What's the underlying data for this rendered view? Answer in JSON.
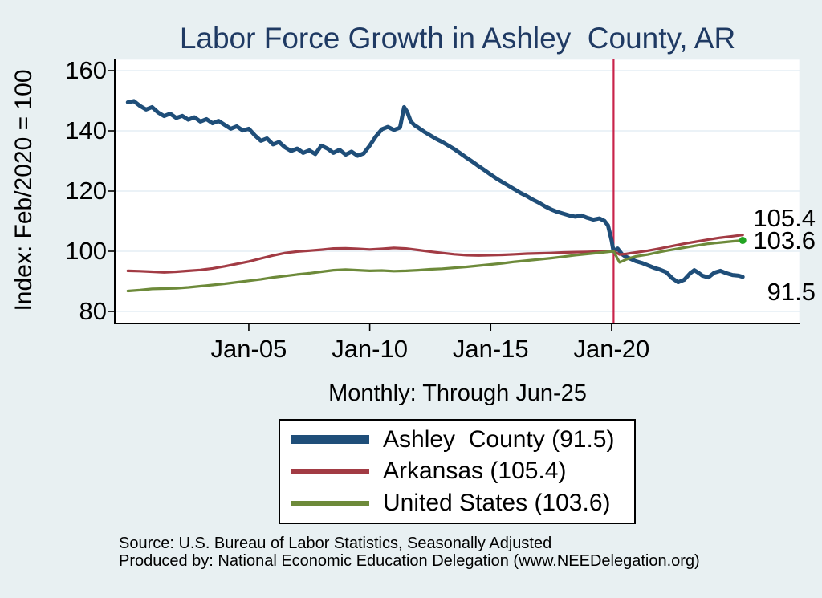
{
  "title": {
    "text": "Labor Force Growth in Ashley  County, AR"
  },
  "colors": {
    "background": "#e8f0f2",
    "plot_bg": "#ffffff",
    "grid": "#dfe9f2",
    "axis": "#000000",
    "title": "#1f3a63",
    "navy": "#1f4e79",
    "maroon": "#a23b44",
    "olive": "#6d8a3a",
    "vline": "#c9244b",
    "end_marker": "#22a422"
  },
  "chart_data": {
    "type": "line",
    "title": "Labor Force Growth in Ashley  County, AR",
    "xlabel": "Monthly: Through Jun-25",
    "ylabel": "Index: Feb/2020 = 100",
    "grid": true,
    "legend_position": "bottom",
    "ylim": [
      76,
      164
    ],
    "xlim": [
      1999.5,
      2027.8
    ],
    "y_ticks": [
      {
        "value": 160,
        "label": "160"
      },
      {
        "value": 140,
        "label": "140"
      },
      {
        "value": 120,
        "label": "120"
      },
      {
        "value": 100,
        "label": "100"
      },
      {
        "value": 80,
        "label": "80"
      }
    ],
    "x_ticks": [
      {
        "year": 2005,
        "label": "Jan-05"
      },
      {
        "year": 2010,
        "label": "Jan-10"
      },
      {
        "year": 2015,
        "label": "Jan-15"
      },
      {
        "year": 2020,
        "label": "Jan-20"
      }
    ],
    "reference_line": {
      "x_year": 2020.083,
      "color": "#c9244b"
    },
    "series": [
      {
        "name": "Ashley  County",
        "final_value": "91.5",
        "color": "#1f4e79",
        "width": 5,
        "points": [
          [
            2000,
            149.5
          ],
          [
            2000.25,
            149.9
          ],
          [
            2000.5,
            148.3
          ],
          [
            2000.75,
            147.1
          ],
          [
            2001,
            147.9
          ],
          [
            2001.25,
            146.1
          ],
          [
            2001.5,
            144.9
          ],
          [
            2001.75,
            145.7
          ],
          [
            2002,
            144.3
          ],
          [
            2002.25,
            145.0
          ],
          [
            2002.5,
            143.7
          ],
          [
            2002.75,
            144.5
          ],
          [
            2003,
            143.1
          ],
          [
            2003.25,
            143.9
          ],
          [
            2003.5,
            142.5
          ],
          [
            2003.75,
            143.3
          ],
          [
            2004,
            142.0
          ],
          [
            2004.25,
            140.7
          ],
          [
            2004.5,
            141.5
          ],
          [
            2004.75,
            140.1
          ],
          [
            2005,
            140.7
          ],
          [
            2005.25,
            138.5
          ],
          [
            2005.5,
            136.7
          ],
          [
            2005.75,
            137.5
          ],
          [
            2006,
            135.5
          ],
          [
            2006.25,
            136.3
          ],
          [
            2006.5,
            134.5
          ],
          [
            2006.75,
            133.3
          ],
          [
            2007,
            134.1
          ],
          [
            2007.25,
            132.7
          ],
          [
            2007.5,
            133.5
          ],
          [
            2007.75,
            132.3
          ],
          [
            2008,
            135.1
          ],
          [
            2008.25,
            134.1
          ],
          [
            2008.5,
            132.7
          ],
          [
            2008.75,
            133.7
          ],
          [
            2009,
            132.1
          ],
          [
            2009.25,
            133.1
          ],
          [
            2009.5,
            131.7
          ],
          [
            2009.75,
            132.5
          ],
          [
            2010,
            135.1
          ],
          [
            2010.25,
            138.1
          ],
          [
            2010.5,
            140.5
          ],
          [
            2010.75,
            141.3
          ],
          [
            2011,
            140.3
          ],
          [
            2011.25,
            141.1
          ],
          [
            2011.42,
            147.9
          ],
          [
            2011.55,
            146.3
          ],
          [
            2011.7,
            143.1
          ],
          [
            2011.85,
            141.9
          ],
          [
            2012,
            141.1
          ],
          [
            2012.25,
            139.7
          ],
          [
            2012.5,
            138.5
          ],
          [
            2012.75,
            137.3
          ],
          [
            2013,
            136.3
          ],
          [
            2013.25,
            135.1
          ],
          [
            2013.5,
            133.9
          ],
          [
            2013.75,
            132.5
          ],
          [
            2014,
            131.1
          ],
          [
            2014.25,
            129.7
          ],
          [
            2014.5,
            128.3
          ],
          [
            2014.75,
            126.9
          ],
          [
            2015,
            125.5
          ],
          [
            2015.25,
            124.1
          ],
          [
            2015.5,
            122.9
          ],
          [
            2015.75,
            121.7
          ],
          [
            2016,
            120.5
          ],
          [
            2016.25,
            119.3
          ],
          [
            2016.5,
            118.3
          ],
          [
            2016.75,
            117.1
          ],
          [
            2017,
            116.1
          ],
          [
            2017.25,
            114.9
          ],
          [
            2017.5,
            113.9
          ],
          [
            2017.75,
            113.1
          ],
          [
            2018,
            112.5
          ],
          [
            2018.25,
            111.9
          ],
          [
            2018.5,
            111.5
          ],
          [
            2018.75,
            111.9
          ],
          [
            2019,
            111.1
          ],
          [
            2019.25,
            110.5
          ],
          [
            2019.5,
            110.9
          ],
          [
            2019.7,
            110.1
          ],
          [
            2019.85,
            108.6
          ],
          [
            2020,
            103.6
          ],
          [
            2020.08,
            100.0
          ],
          [
            2020.25,
            100.9
          ],
          [
            2020.42,
            99.1
          ],
          [
            2020.58,
            98.2
          ],
          [
            2020.83,
            97.3
          ],
          [
            2021,
            96.7
          ],
          [
            2021.25,
            96.1
          ],
          [
            2021.5,
            95.3
          ],
          [
            2021.75,
            94.5
          ],
          [
            2022,
            93.9
          ],
          [
            2022.25,
            93.1
          ],
          [
            2022.5,
            91.1
          ],
          [
            2022.75,
            89.7
          ],
          [
            2023,
            90.5
          ],
          [
            2023.25,
            92.7
          ],
          [
            2023.42,
            93.7
          ],
          [
            2023.58,
            92.9
          ],
          [
            2023.75,
            91.9
          ],
          [
            2024,
            91.3
          ],
          [
            2024.25,
            92.9
          ],
          [
            2024.5,
            93.5
          ],
          [
            2024.75,
            92.7
          ],
          [
            2025,
            92.1
          ],
          [
            2025.25,
            91.9
          ],
          [
            2025.42,
            91.5
          ]
        ]
      },
      {
        "name": "Arkansas",
        "final_value": "105.4",
        "color": "#a23b44",
        "width": 3.2,
        "points": [
          [
            2000,
            93.5
          ],
          [
            2000.5,
            93.4
          ],
          [
            2001,
            93.2
          ],
          [
            2001.5,
            93.0
          ],
          [
            2002,
            93.2
          ],
          [
            2002.5,
            93.5
          ],
          [
            2003,
            93.8
          ],
          [
            2003.5,
            94.3
          ],
          [
            2004,
            95.0
          ],
          [
            2004.5,
            95.8
          ],
          [
            2005,
            96.6
          ],
          [
            2005.5,
            97.6
          ],
          [
            2006,
            98.6
          ],
          [
            2006.5,
            99.4
          ],
          [
            2007,
            99.9
          ],
          [
            2007.5,
            100.2
          ],
          [
            2008,
            100.5
          ],
          [
            2008.5,
            100.9
          ],
          [
            2009,
            101.0
          ],
          [
            2009.5,
            100.8
          ],
          [
            2010,
            100.6
          ],
          [
            2010.5,
            100.8
          ],
          [
            2011,
            101.1
          ],
          [
            2011.5,
            100.9
          ],
          [
            2012,
            100.4
          ],
          [
            2012.5,
            99.9
          ],
          [
            2013,
            99.4
          ],
          [
            2013.5,
            99.0
          ],
          [
            2014,
            98.7
          ],
          [
            2014.5,
            98.6
          ],
          [
            2015,
            98.7
          ],
          [
            2015.5,
            98.8
          ],
          [
            2016,
            99.0
          ],
          [
            2016.5,
            99.2
          ],
          [
            2017,
            99.3
          ],
          [
            2017.5,
            99.4
          ],
          [
            2018,
            99.6
          ],
          [
            2018.5,
            99.7
          ],
          [
            2019,
            99.8
          ],
          [
            2019.5,
            99.9
          ],
          [
            2020.08,
            100.0
          ],
          [
            2020.33,
            98.9
          ],
          [
            2020.58,
            99.1
          ],
          [
            2020.83,
            99.4
          ],
          [
            2021,
            99.6
          ],
          [
            2021.5,
            100.2
          ],
          [
            2022,
            100.9
          ],
          [
            2022.5,
            101.7
          ],
          [
            2023,
            102.5
          ],
          [
            2023.5,
            103.2
          ],
          [
            2024,
            103.9
          ],
          [
            2024.5,
            104.5
          ],
          [
            2025,
            105.0
          ],
          [
            2025.42,
            105.4
          ]
        ]
      },
      {
        "name": "United States",
        "final_value": "103.6",
        "color": "#6d8a3a",
        "width": 3.2,
        "end_marker": true,
        "points": [
          [
            2000,
            86.8
          ],
          [
            2000.5,
            87.1
          ],
          [
            2001,
            87.5
          ],
          [
            2001.5,
            87.6
          ],
          [
            2002,
            87.7
          ],
          [
            2002.5,
            88.0
          ],
          [
            2003,
            88.4
          ],
          [
            2003.5,
            88.8
          ],
          [
            2004,
            89.2
          ],
          [
            2004.5,
            89.7
          ],
          [
            2005,
            90.2
          ],
          [
            2005.5,
            90.7
          ],
          [
            2006,
            91.3
          ],
          [
            2006.5,
            91.8
          ],
          [
            2007,
            92.3
          ],
          [
            2007.5,
            92.7
          ],
          [
            2008,
            93.2
          ],
          [
            2008.5,
            93.7
          ],
          [
            2009,
            93.9
          ],
          [
            2009.5,
            93.7
          ],
          [
            2010,
            93.5
          ],
          [
            2010.5,
            93.6
          ],
          [
            2011,
            93.4
          ],
          [
            2011.5,
            93.5
          ],
          [
            2012,
            93.7
          ],
          [
            2012.5,
            94.0
          ],
          [
            2013,
            94.2
          ],
          [
            2013.5,
            94.5
          ],
          [
            2014,
            94.8
          ],
          [
            2014.5,
            95.2
          ],
          [
            2015,
            95.6
          ],
          [
            2015.5,
            96.0
          ],
          [
            2016,
            96.5
          ],
          [
            2016.5,
            96.9
          ],
          [
            2017,
            97.3
          ],
          [
            2017.5,
            97.7
          ],
          [
            2018,
            98.2
          ],
          [
            2018.5,
            98.7
          ],
          [
            2019,
            99.1
          ],
          [
            2019.5,
            99.5
          ],
          [
            2020.08,
            100.0
          ],
          [
            2020.33,
            96.3
          ],
          [
            2020.58,
            97.2
          ],
          [
            2020.83,
            97.9
          ],
          [
            2021,
            98.3
          ],
          [
            2021.5,
            98.9
          ],
          [
            2022,
            99.8
          ],
          [
            2022.5,
            100.5
          ],
          [
            2023,
            101.2
          ],
          [
            2023.5,
            101.9
          ],
          [
            2024,
            102.5
          ],
          [
            2024.5,
            102.9
          ],
          [
            2025,
            103.3
          ],
          [
            2025.42,
            103.6
          ]
        ]
      }
    ],
    "end_labels": [
      "105.4",
      "103.6",
      "91.5"
    ]
  },
  "legend": {
    "items": [
      {
        "label": "Ashley  County (91.5)",
        "color": "#1f4e79",
        "thickness": 11
      },
      {
        "label": "Arkansas (105.4)",
        "color": "#a23b44",
        "thickness": 6
      },
      {
        "label": "United States (103.6)",
        "color": "#6d8a3a",
        "thickness": 6
      }
    ]
  },
  "footer": {
    "line1": "Source: U.S. Bureau of Labor Statistics, Seasonally Adjusted",
    "line2": "Produced by: National Economic Education Delegation (www.NEEDelegation.org)"
  }
}
